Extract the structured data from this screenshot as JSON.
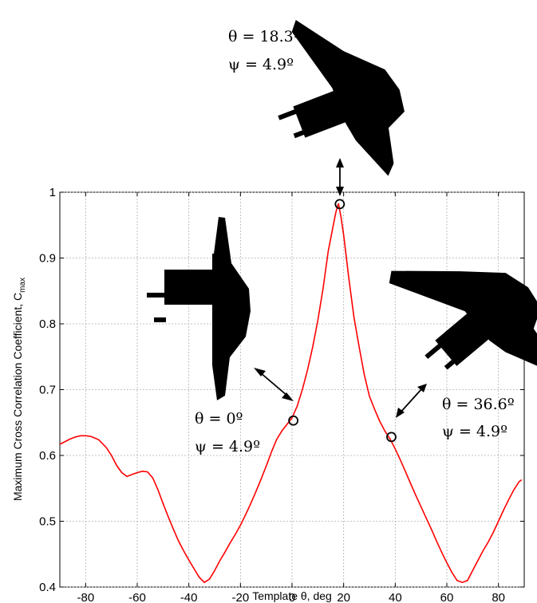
{
  "chart_data": {
    "type": "line",
    "title": "",
    "xlabel": "Template θ, deg",
    "ylabel": "Maximum Cross Correlation Coefficient, C",
    "ylabel_sub": "max",
    "xlim": [
      -90,
      90
    ],
    "ylim": [
      0.4,
      1.0
    ],
    "grid": true,
    "x_ticks": [
      -80,
      -60,
      -40,
      -20,
      0,
      20,
      40,
      60,
      80
    ],
    "y_ticks": [
      0.4,
      0.5,
      0.6,
      0.7,
      0.8,
      0.9,
      1.0
    ],
    "x_tick_labels": [
      "-80",
      "-60",
      "-40",
      "-20",
      "0",
      "20",
      "40",
      "60",
      "80"
    ],
    "y_tick_labels": [
      "0.4",
      "0.5",
      "0.6",
      "0.7",
      "0.8",
      "0.9",
      "1"
    ],
    "series": [
      {
        "color": "#ff0000",
        "x": [
          -90,
          -86,
          -84,
          -82,
          -80,
          -78,
          -75,
          -72,
          -70,
          -68,
          -66,
          -64,
          -62,
          -60,
          -58,
          -56,
          -54,
          -52,
          -50,
          -48,
          -46,
          -44,
          -42,
          -40,
          -38,
          -36,
          -34,
          -32,
          -30,
          -28,
          -26,
          -24,
          -22,
          -20,
          -18,
          -16,
          -14,
          -12,
          -10,
          -8,
          -6,
          -4,
          -2,
          0,
          2,
          4,
          6,
          8,
          10,
          12,
          14,
          16,
          17,
          18,
          19,
          20,
          22,
          24,
          26,
          28,
          30,
          32,
          34,
          36,
          38,
          40,
          42,
          44,
          46,
          48,
          50,
          52,
          54,
          56,
          58,
          60,
          62,
          64,
          66,
          68,
          70,
          72,
          74,
          76,
          78,
          80,
          82,
          84,
          86,
          88,
          89
        ],
        "y": [
          0.617,
          0.625,
          0.628,
          0.63,
          0.63,
          0.629,
          0.624,
          0.612,
          0.6,
          0.585,
          0.574,
          0.568,
          0.571,
          0.574,
          0.576,
          0.575,
          0.566,
          0.548,
          0.527,
          0.507,
          0.488,
          0.47,
          0.455,
          0.441,
          0.428,
          0.415,
          0.407,
          0.412,
          0.425,
          0.44,
          0.453,
          0.467,
          0.48,
          0.494,
          0.51,
          0.527,
          0.545,
          0.564,
          0.584,
          0.605,
          0.624,
          0.637,
          0.647,
          0.657,
          0.675,
          0.7,
          0.73,
          0.765,
          0.805,
          0.853,
          0.91,
          0.95,
          0.97,
          0.983,
          0.962,
          0.935,
          0.87,
          0.81,
          0.765,
          0.723,
          0.69,
          0.67,
          0.652,
          0.637,
          0.625,
          0.61,
          0.593,
          0.575,
          0.557,
          0.539,
          0.522,
          0.505,
          0.488,
          0.47,
          0.453,
          0.437,
          0.422,
          0.41,
          0.407,
          0.41,
          0.425,
          0.44,
          0.455,
          0.468,
          0.483,
          0.5,
          0.517,
          0.533,
          0.548,
          0.56,
          0.563
        ]
      }
    ],
    "markers": [
      {
        "x": 0.5,
        "y": 0.653
      },
      {
        "x": 18.5,
        "y": 0.982
      },
      {
        "x": 38.5,
        "y": 0.628
      }
    ],
    "annotations": [
      {
        "theta": "θ = 0º",
        "psi": "ψ = 4.9º"
      },
      {
        "theta": "θ = 18.3º",
        "psi": "ψ = 4.9º"
      },
      {
        "theta": "θ = 36.6º",
        "psi": "ψ = 4.9º"
      }
    ]
  }
}
